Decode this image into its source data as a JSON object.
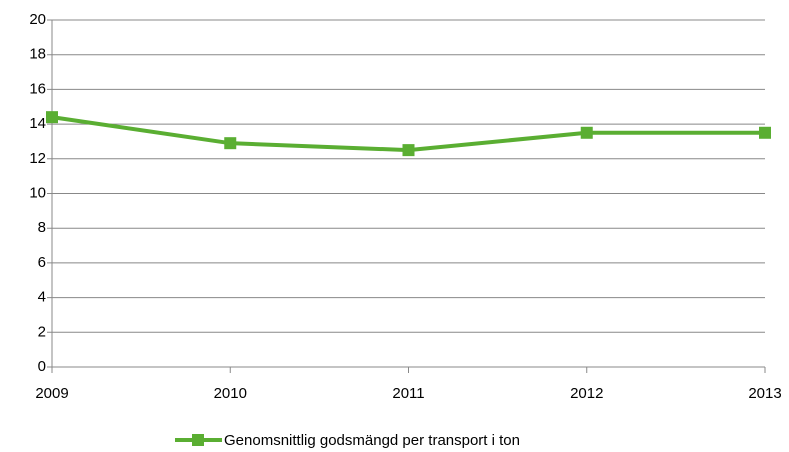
{
  "chart_data": {
    "type": "line",
    "x": [
      2009,
      2010,
      2011,
      2012,
      2013
    ],
    "xlim": [
      2009,
      2013
    ],
    "xticks": [
      2009,
      2010,
      2011,
      2012,
      2013
    ],
    "series": [
      {
        "name": "Genomsnittlig godsmängd per transport i ton",
        "color": "#5aae32",
        "values": [
          14.4,
          12.9,
          12.5,
          13.5,
          13.5
        ]
      }
    ],
    "ylim": [
      0,
      20
    ],
    "yticks": [
      0,
      2,
      4,
      6,
      8,
      10,
      12,
      14,
      16,
      18,
      20
    ],
    "grid": true,
    "legend": "bottom"
  }
}
